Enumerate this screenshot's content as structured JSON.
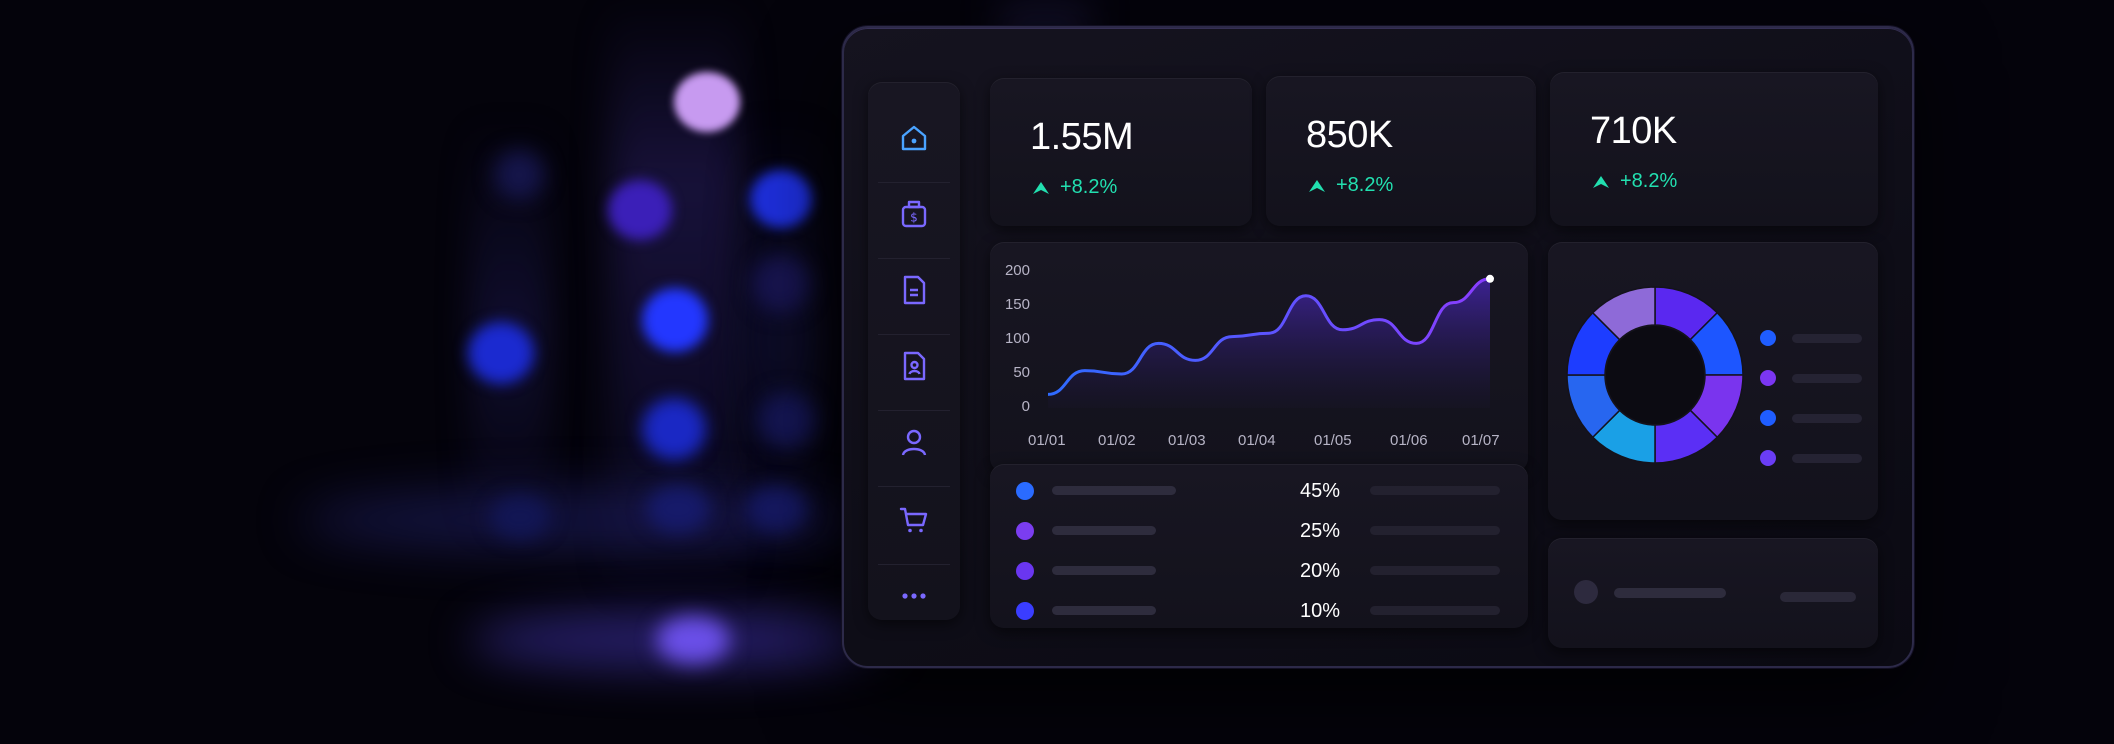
{
  "colors": {
    "accent": "#6a3dff",
    "positive": "#22e0b0",
    "nav_icon": "#7a68ff",
    "nav_active": "#4aa3ff"
  },
  "sidebar": {
    "items": [
      {
        "icon": "home-icon",
        "active": true
      },
      {
        "icon": "money-bag-icon"
      },
      {
        "icon": "document-icon"
      },
      {
        "icon": "user-document-icon"
      },
      {
        "icon": "user-icon"
      },
      {
        "icon": "cart-icon"
      },
      {
        "icon": "more-icon"
      }
    ]
  },
  "stats": [
    {
      "value": "1.55M",
      "delta": "+8.2%"
    },
    {
      "value": "850K",
      "delta": "+8.2%"
    },
    {
      "value": "710K",
      "delta": "+8.2%"
    }
  ],
  "chart_data": [
    {
      "type": "area",
      "x": [
        "01/01",
        "01/02",
        "01/03",
        "01/04",
        "01/05",
        "01/06",
        "01/07"
      ],
      "yticks": [
        "200",
        "150",
        "100",
        "50",
        "0"
      ],
      "ylim": [
        0,
        200
      ],
      "series": [
        {
          "x": [
            0,
            0.5,
            1.0,
            1.5,
            2.0,
            2.5,
            3.0,
            3.5,
            4.0,
            4.5,
            5.0,
            5.5,
            6.0
          ],
          "values": [
            20,
            55,
            50,
            95,
            70,
            105,
            110,
            165,
            115,
            130,
            95,
            155,
            190
          ]
        }
      ]
    },
    {
      "type": "pie",
      "values": [
        12.5,
        12.5,
        12.5,
        12.5,
        12.5,
        12.5,
        12.5,
        12.5
      ],
      "colors": [
        "#5a28f0",
        "#1d56ff",
        "#7a34ee",
        "#5b2ff5",
        "#1aa0e6",
        "#2766f0",
        "#1d3dff",
        "#8e6ad8"
      ]
    }
  ],
  "breakdown": {
    "rows": [
      {
        "color": "#2a6bff",
        "pct": "45%"
      },
      {
        "color": "#7b3df0",
        "pct": "25%"
      },
      {
        "color": "#6a36f0",
        "pct": "20%"
      },
      {
        "color": "#3a3dff",
        "pct": "10%"
      }
    ]
  },
  "donut_legend": [
    {
      "color": "#1f5dff"
    },
    {
      "color": "#7b36f2"
    },
    {
      "color": "#1f5dff"
    },
    {
      "color": "#6a3df5"
    }
  ]
}
